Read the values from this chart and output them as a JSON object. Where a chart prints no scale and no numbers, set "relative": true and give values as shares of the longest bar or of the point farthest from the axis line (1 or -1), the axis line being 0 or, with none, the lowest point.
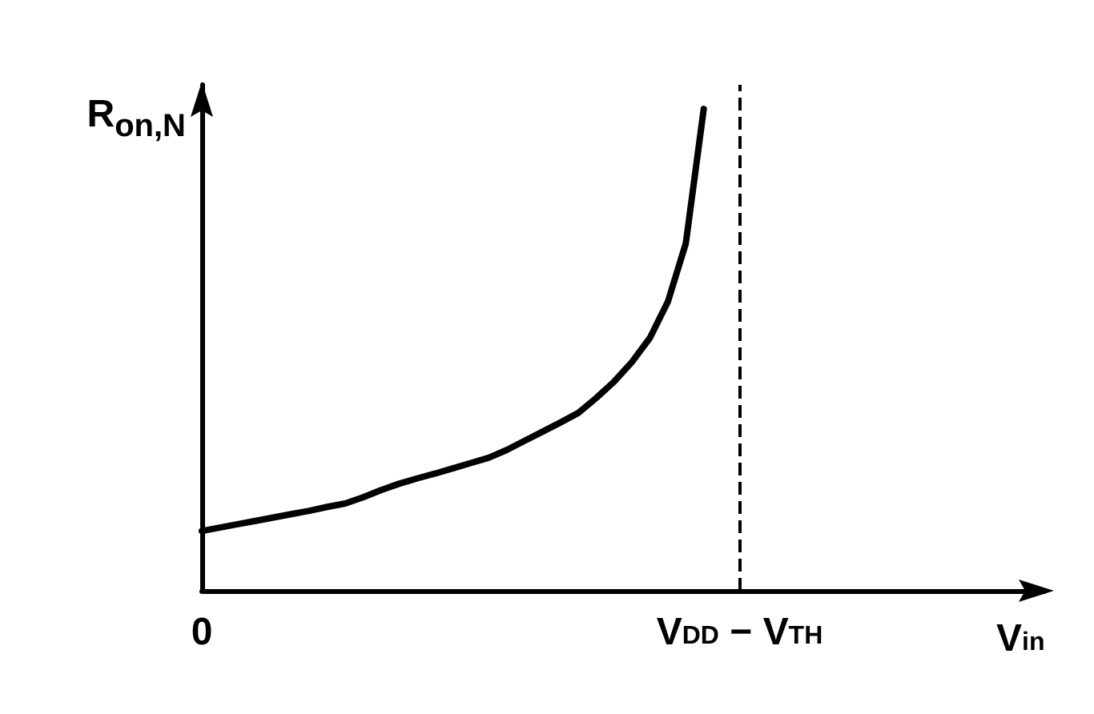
{
  "chart_data": {
    "type": "line",
    "relative": true,
    "xlabel": "V$_{in}$",
    "ylabel": "R$_{on,N}$",
    "categories": [
      "0",
      null,
      null,
      null,
      null,
      null,
      null,
      null,
      null,
      null,
      null,
      null,
      null,
      null,
      null,
      null,
      null,
      null,
      null,
      null,
      null,
      null,
      null,
      null,
      null,
      null,
      null,
      null,
      null,
      null,
      "V$_{DD}$ − V$_{TH}$",
      null,
      null,
      null,
      null,
      null,
      null,
      null,
      null,
      null,
      null,
      null,
      null,
      null,
      null,
      null,
      null,
      null
    ],
    "series": [
      {
        "color": "#000000",
        "values": [
          0.124,
          0.131,
          0.138,
          0.145,
          0.152,
          0.159,
          0.166,
          0.174,
          0.181,
          0.194,
          0.209,
          0.222,
          0.233,
          0.243,
          0.254,
          0.265,
          0.276,
          0.292,
          0.311,
          0.33,
          0.349,
          0.369,
          0.4,
          0.434,
          0.475,
          0.525,
          0.6,
          0.721,
          1.0,
          null,
          null,
          null,
          null,
          null,
          null,
          null,
          null,
          null,
          null,
          null,
          null,
          null,
          null,
          null,
          null,
          null,
          null,
          null
        ]
      }
    ],
    "ref_lines": [
      {
        "axis": "x",
        "value": "V$_{DD}$ − V$_{TH}$",
        "label": null,
        "line_style": "dashed",
        "color": "#000000"
      }
    ]
  }
}
